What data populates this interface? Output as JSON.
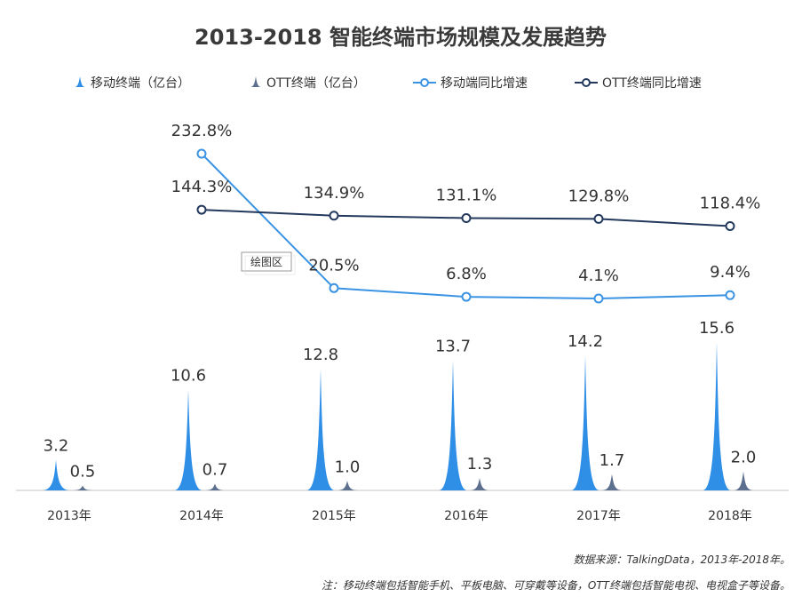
{
  "chart_data": {
    "type": "bar",
    "title": "2013-2018  智能终端市场规模及发展趋势",
    "categories": [
      "2013年",
      "2014年",
      "2015年",
      "2016年",
      "2017年",
      "2018年"
    ],
    "series": [
      {
        "name": "移动终端（亿台）",
        "kind": "spike",
        "axis": "left",
        "color": "#2f8ee5",
        "values": [
          3.2,
          10.6,
          12.8,
          13.7,
          14.2,
          15.6
        ],
        "labels": [
          "3.2",
          "10.6",
          "12.8",
          "13.7",
          "14.2",
          "15.6"
        ]
      },
      {
        "name": "OTT终端（亿台）",
        "kind": "spike",
        "axis": "left",
        "color": "#5c6f8e",
        "values": [
          0.5,
          0.7,
          1.0,
          1.3,
          1.7,
          2.0
        ],
        "labels": [
          "0.5",
          "0.7",
          "1.0",
          "1.3",
          "1.7",
          "2.0"
        ]
      },
      {
        "name": "移动端同比增速",
        "kind": "line",
        "axis": "right",
        "color": "#3b93e3",
        "values": [
          null,
          232.8,
          20.5,
          6.8,
          4.1,
          9.4
        ],
        "labels": [
          "",
          "232.8%",
          "20.5%",
          "6.8%",
          "4.1%",
          "9.4%"
        ]
      },
      {
        "name": "OTT终端同比增速",
        "kind": "line",
        "axis": "right",
        "color": "#23395d",
        "values": [
          null,
          144.3,
          134.9,
          131.1,
          129.8,
          118.4
        ],
        "labels": [
          "",
          "144.3%",
          "134.9%",
          "131.1%",
          "129.8%",
          "118.4%"
        ]
      }
    ],
    "ylim_left": [
      0,
      16
    ],
    "ylim_right": [
      0,
      240
    ],
    "xlabel": "",
    "ylabel": "",
    "grid": false,
    "legend_position": "top",
    "plot_area_tag": "绘图区"
  },
  "footnotes": {
    "source": "数据来源：TalkingData，2013年-2018年。",
    "note": "注：移动终端包括智能手机、平板电脑、可穿戴等设备，OTT终端包括智能电视、电视盒子等设备。"
  }
}
